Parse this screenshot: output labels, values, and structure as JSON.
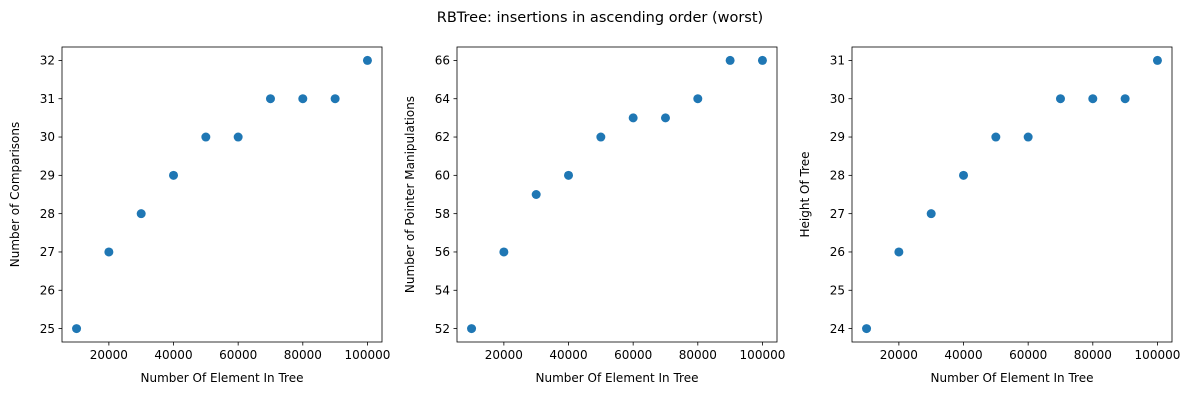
{
  "figure": {
    "suptitle": "RBTree: insertions in ascending order (worst)"
  },
  "chart_data": [
    {
      "type": "scatter",
      "title": "",
      "xlabel": "Number Of Element In Tree",
      "ylabel": "Number of Comparisons",
      "x": [
        10000,
        20000,
        30000,
        40000,
        50000,
        60000,
        70000,
        80000,
        90000,
        100000
      ],
      "y": [
        25,
        27,
        28,
        29,
        30,
        30,
        31,
        31,
        31,
        32
      ],
      "xlim": [
        5500,
        104500
      ],
      "ylim": [
        24.65,
        32.35
      ],
      "xticks": [
        20000,
        40000,
        60000,
        80000,
        100000
      ],
      "xtick_labels": [
        "20000",
        "40000",
        "60000",
        "80000",
        "100000"
      ],
      "yticks": [
        25,
        26,
        27,
        28,
        29,
        30,
        31,
        32
      ],
      "ytick_labels": [
        "25",
        "26",
        "27",
        "28",
        "29",
        "30",
        "31",
        "32"
      ],
      "grid": false,
      "marker_color": "#1f77b4"
    },
    {
      "type": "scatter",
      "title": "",
      "xlabel": "Number Of Element In Tree",
      "ylabel": "Number of Pointer Manipulations",
      "x": [
        10000,
        20000,
        30000,
        40000,
        50000,
        60000,
        70000,
        80000,
        90000,
        100000
      ],
      "y": [
        52,
        56,
        59,
        60,
        62,
        63,
        63,
        64,
        66,
        66
      ],
      "xlim": [
        5500,
        104500
      ],
      "ylim": [
        51.3,
        66.7
      ],
      "xticks": [
        20000,
        40000,
        60000,
        80000,
        100000
      ],
      "xtick_labels": [
        "20000",
        "40000",
        "60000",
        "80000",
        "100000"
      ],
      "yticks": [
        52,
        54,
        56,
        58,
        60,
        62,
        64,
        66
      ],
      "ytick_labels": [
        "52",
        "54",
        "56",
        "58",
        "60",
        "62",
        "64",
        "66"
      ],
      "grid": false,
      "marker_color": "#1f77b4"
    },
    {
      "type": "scatter",
      "title": "",
      "xlabel": "Number Of Element In Tree",
      "ylabel": "Height Of Tree",
      "x": [
        10000,
        20000,
        30000,
        40000,
        50000,
        60000,
        70000,
        80000,
        90000,
        100000
      ],
      "y": [
        24,
        26,
        27,
        28,
        29,
        29,
        30,
        30,
        30,
        31
      ],
      "xlim": [
        5500,
        104500
      ],
      "ylim": [
        23.65,
        31.35
      ],
      "xticks": [
        20000,
        40000,
        60000,
        80000,
        100000
      ],
      "xtick_labels": [
        "20000",
        "40000",
        "60000",
        "80000",
        "100000"
      ],
      "yticks": [
        24,
        25,
        26,
        27,
        28,
        29,
        30,
        31
      ],
      "ytick_labels": [
        "24",
        "25",
        "26",
        "27",
        "28",
        "29",
        "30",
        "31"
      ],
      "grid": false,
      "marker_color": "#1f77b4"
    }
  ]
}
